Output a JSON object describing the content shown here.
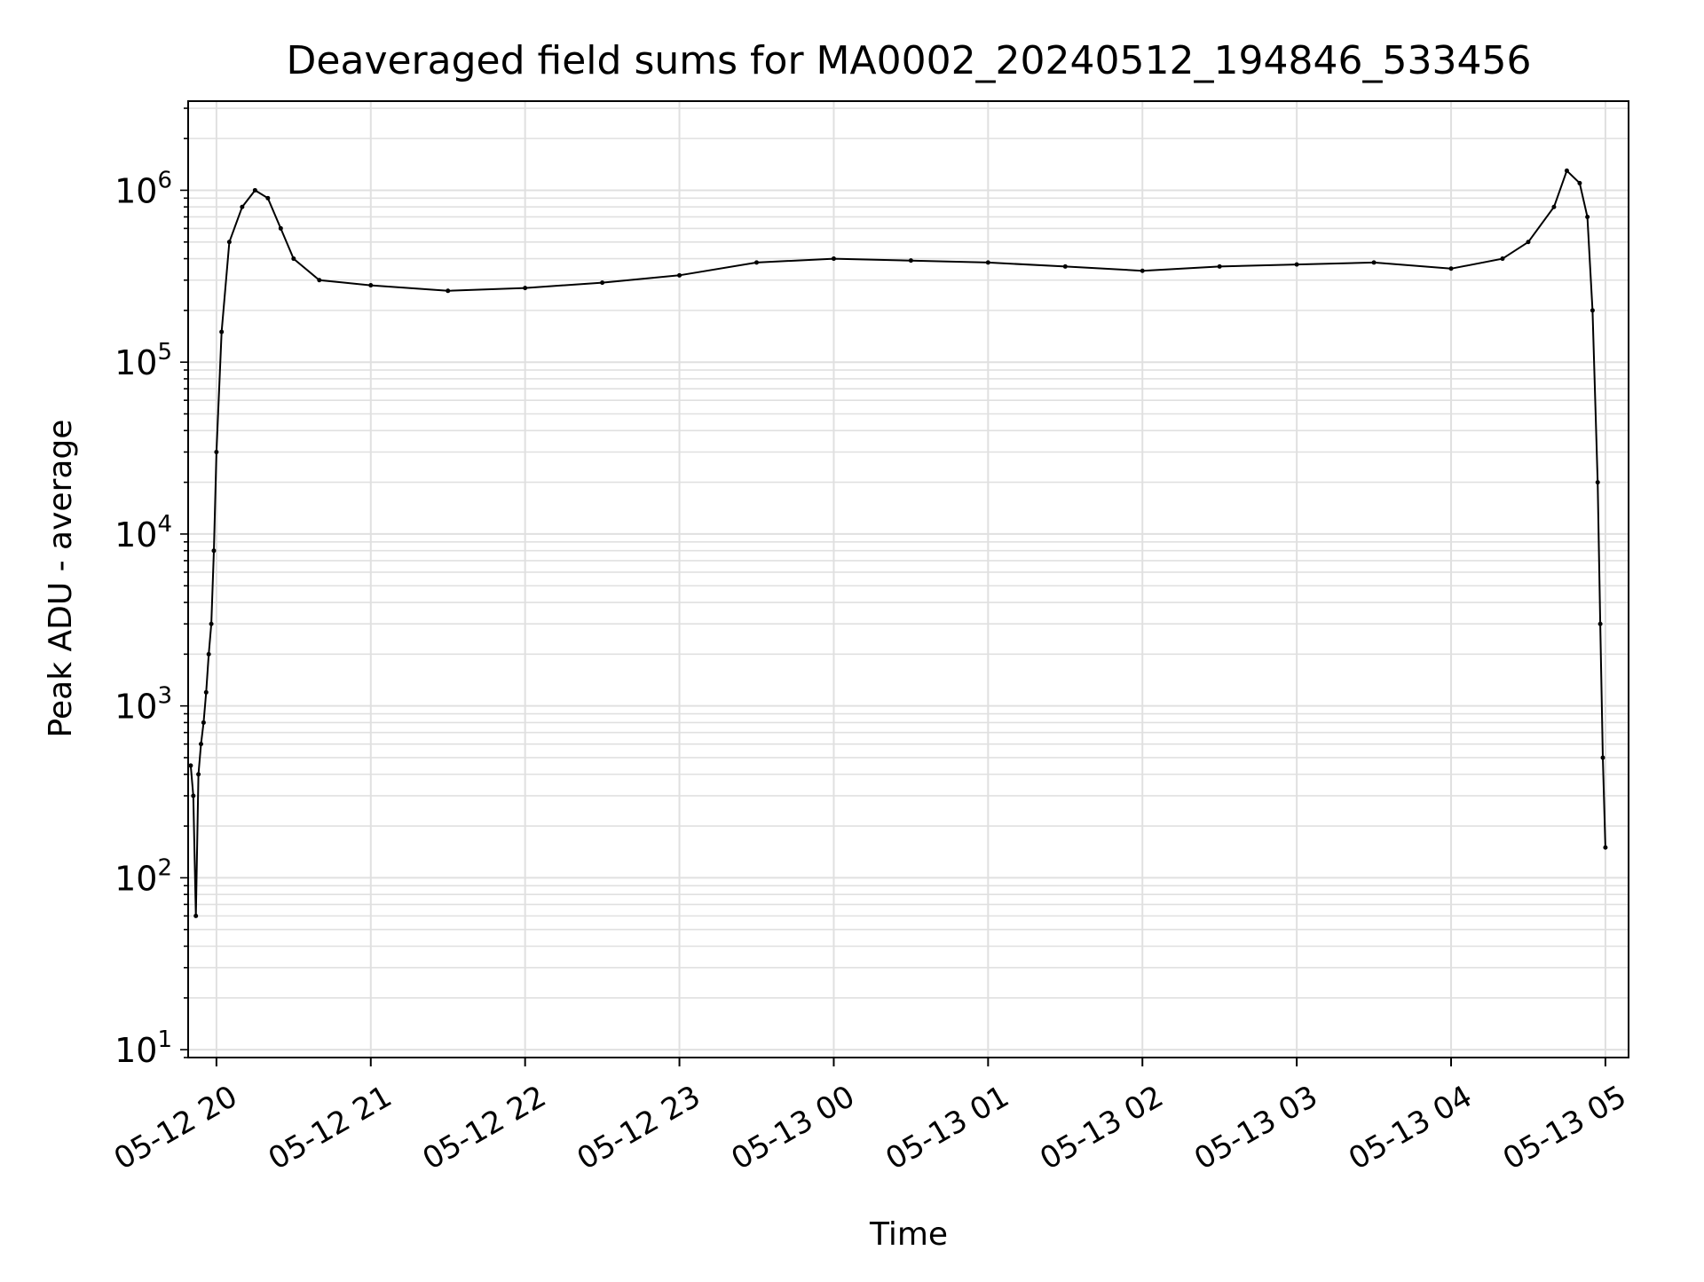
{
  "chart_data": {
    "type": "line",
    "title": "Deaveraged field sums for MA0002_20240512_194846_533456",
    "xlabel": "Time",
    "ylabel": "Peak ADU - average",
    "yscale": "log",
    "ylim": [
      9,
      3300000
    ],
    "xlim": [
      "2024-05-12 19:49",
      "2024-05-13 05:09"
    ],
    "grid": true,
    "line_color": "#000000",
    "grid_color": "#e0e0e0",
    "x_ticks": [
      {
        "t": "2024-05-12 20:00",
        "label": "05-12 20"
      },
      {
        "t": "2024-05-12 21:00",
        "label": "05-12 21"
      },
      {
        "t": "2024-05-12 22:00",
        "label": "05-12 22"
      },
      {
        "t": "2024-05-12 23:00",
        "label": "05-12 23"
      },
      {
        "t": "2024-05-13 00:00",
        "label": "05-13 00"
      },
      {
        "t": "2024-05-13 01:00",
        "label": "05-13 01"
      },
      {
        "t": "2024-05-13 02:00",
        "label": "05-13 02"
      },
      {
        "t": "2024-05-13 03:00",
        "label": "05-13 03"
      },
      {
        "t": "2024-05-13 04:00",
        "label": "05-13 04"
      },
      {
        "t": "2024-05-13 05:00",
        "label": "05-13 05"
      }
    ],
    "y_ticks": [
      {
        "value": 10,
        "base": "10",
        "exp": "1"
      },
      {
        "value": 100,
        "base": "10",
        "exp": "2"
      },
      {
        "value": 1000,
        "base": "10",
        "exp": "3"
      },
      {
        "value": 10000,
        "base": "10",
        "exp": "4"
      },
      {
        "value": 100000,
        "base": "10",
        "exp": "5"
      },
      {
        "value": 1000000,
        "base": "10",
        "exp": "6"
      }
    ],
    "series": [
      {
        "points": [
          [
            "2024-05-12 19:50",
            450
          ],
          [
            "2024-05-12 19:51",
            300
          ],
          [
            "2024-05-12 19:52",
            60
          ],
          [
            "2024-05-12 19:53",
            400
          ],
          [
            "2024-05-12 19:54",
            600
          ],
          [
            "2024-05-12 19:55",
            800
          ],
          [
            "2024-05-12 19:56",
            1200
          ],
          [
            "2024-05-12 19:57",
            2000
          ],
          [
            "2024-05-12 19:58",
            3000
          ],
          [
            "2024-05-12 19:59",
            8000
          ],
          [
            "2024-05-12 20:00",
            30000
          ],
          [
            "2024-05-12 20:02",
            150000
          ],
          [
            "2024-05-12 20:05",
            500000
          ],
          [
            "2024-05-12 20:10",
            800000
          ],
          [
            "2024-05-12 20:15",
            1000000
          ],
          [
            "2024-05-12 20:20",
            900000
          ],
          [
            "2024-05-12 20:25",
            600000
          ],
          [
            "2024-05-12 20:30",
            400000
          ],
          [
            "2024-05-12 20:40",
            300000
          ],
          [
            "2024-05-12 21:00",
            280000
          ],
          [
            "2024-05-12 21:30",
            260000
          ],
          [
            "2024-05-12 22:00",
            270000
          ],
          [
            "2024-05-12 22:30",
            290000
          ],
          [
            "2024-05-12 23:00",
            320000
          ],
          [
            "2024-05-12 23:30",
            380000
          ],
          [
            "2024-05-13 00:00",
            400000
          ],
          [
            "2024-05-13 00:30",
            390000
          ],
          [
            "2024-05-13 01:00",
            380000
          ],
          [
            "2024-05-13 01:30",
            360000
          ],
          [
            "2024-05-13 02:00",
            340000
          ],
          [
            "2024-05-13 02:30",
            360000
          ],
          [
            "2024-05-13 03:00",
            370000
          ],
          [
            "2024-05-13 03:30",
            380000
          ],
          [
            "2024-05-13 04:00",
            350000
          ],
          [
            "2024-05-13 04:20",
            400000
          ],
          [
            "2024-05-13 04:30",
            500000
          ],
          [
            "2024-05-13 04:40",
            800000
          ],
          [
            "2024-05-13 04:45",
            1300000
          ],
          [
            "2024-05-13 04:50",
            1100000
          ],
          [
            "2024-05-13 04:53",
            700000
          ],
          [
            "2024-05-13 04:55",
            200000
          ],
          [
            "2024-05-13 04:57",
            20000
          ],
          [
            "2024-05-13 04:58",
            3000
          ],
          [
            "2024-05-13 04:59",
            500
          ],
          [
            "2024-05-13 05:00",
            150
          ]
        ]
      }
    ]
  }
}
